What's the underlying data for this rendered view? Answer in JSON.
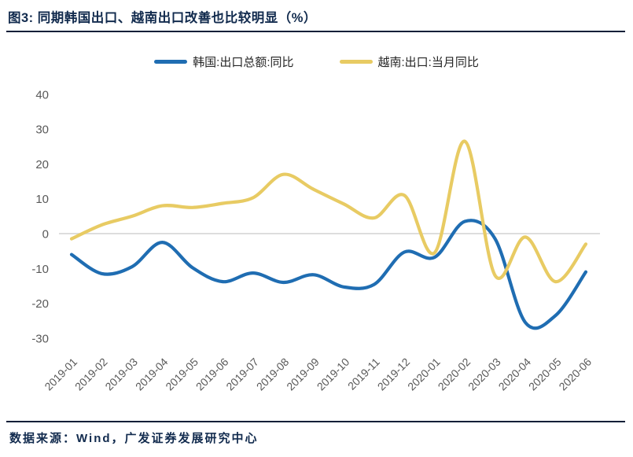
{
  "header": {
    "title": "图3:  同期韩国出口、越南出口改善也比较明显（%）"
  },
  "legend": {
    "items": [
      {
        "label": "韩国:出口总额:同比",
        "color": "#1F6DB2"
      },
      {
        "label": "越南:出口:当月同比",
        "color": "#E8CB63"
      }
    ]
  },
  "footer": {
    "source": "数据来源：Wind，广发证券发展研究中心"
  },
  "colors": {
    "korea_line": "#1F6DB2",
    "vietnam_line": "#E8CB63",
    "zero_line": "#D8D8D8",
    "axis_text": "#595959",
    "title_text": "#122B4E",
    "rule": "#0d1f38"
  },
  "chart_data": {
    "type": "line",
    "title": "同期韩国出口、越南出口改善也比较明显（%）",
    "categories": [
      "2019-01",
      "2019-02",
      "2019-03",
      "2019-04",
      "2019-05",
      "2019-06",
      "2019-07",
      "2019-08",
      "2019-09",
      "2019-10",
      "2019-11",
      "2019-12",
      "2020-01",
      "2020-02",
      "2020-03",
      "2020-04",
      "2020-05",
      "2020-06"
    ],
    "series": [
      {
        "name": "韩国:出口总额:同比",
        "color": "#1F6DB2",
        "values": [
          -6,
          -11.5,
          -9.5,
          -2.5,
          -9.8,
          -13.8,
          -11.3,
          -14,
          -11.8,
          -15.3,
          -14.6,
          -5.3,
          -6.8,
          3.5,
          -1.5,
          -25.5,
          -23.5,
          -11
        ]
      },
      {
        "name": "越南:出口:当月同比",
        "color": "#E8CB63",
        "values": [
          -1.5,
          2.5,
          5,
          8,
          7.5,
          8.7,
          10.3,
          17,
          12.7,
          8.5,
          4.5,
          11,
          -5.5,
          26.5,
          -12,
          -1,
          -13.8,
          -3
        ]
      }
    ],
    "ylim": [
      -30,
      40
    ],
    "yticks": [
      40,
      30,
      20,
      10,
      0,
      -10,
      -20,
      -30
    ],
    "grid": "zero-line-only",
    "legend_position": "top-center",
    "x_label_rotation": 45
  }
}
